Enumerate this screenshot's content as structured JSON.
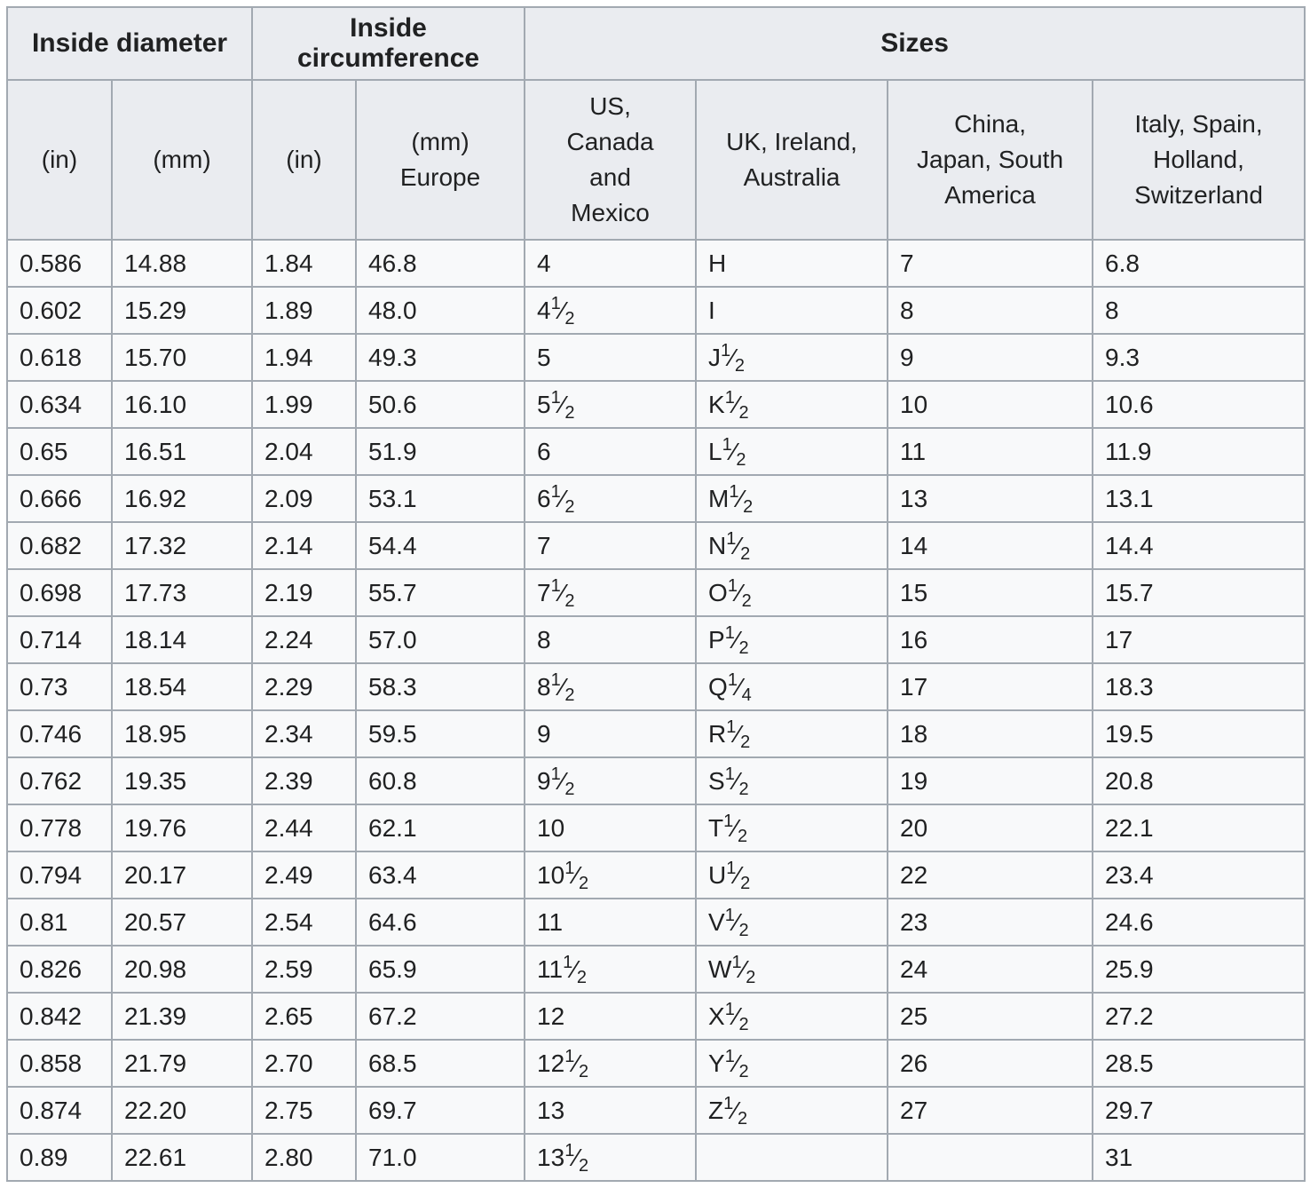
{
  "colors": {
    "border": "#a2a9b1",
    "header_bg": "#eaecf0",
    "cell_bg": "#f8f9fa",
    "text": "#202122",
    "page_bg": "#ffffff"
  },
  "table": {
    "name": "ring-size-conversion-table",
    "group_headers": [
      {
        "id": "inside-diameter",
        "label": "Inside diameter",
        "colspan": 2
      },
      {
        "id": "inside-circumference",
        "label": "Inside circumference",
        "colspan": 2
      },
      {
        "id": "sizes",
        "label": "Sizes",
        "colspan": 4
      }
    ],
    "column_headers": [
      {
        "id": "diameter-in",
        "lines": [
          "(in)"
        ]
      },
      {
        "id": "diameter-mm",
        "lines": [
          "(mm)"
        ]
      },
      {
        "id": "circumference-in",
        "lines": [
          "(in)"
        ]
      },
      {
        "id": "circumference-mm-europe",
        "lines": [
          "(mm)",
          "Europe"
        ]
      },
      {
        "id": "us-canada-mexico",
        "lines": [
          "US,",
          "Canada",
          "and",
          "Mexico"
        ]
      },
      {
        "id": "uk-ireland-australia",
        "lines": [
          "UK, Ireland,",
          "Australia"
        ]
      },
      {
        "id": "china-japan-south-america",
        "lines": [
          "China,",
          "Japan, South",
          "America"
        ]
      },
      {
        "id": "italy-spain-holland-switzerland",
        "lines": [
          "Italy, Spain,",
          "Holland,",
          "Switzerland"
        ]
      }
    ],
    "rows": [
      [
        "0.586",
        "14.88",
        "1.84",
        "46.8",
        "4",
        "H",
        "7",
        "6.8"
      ],
      [
        "0.602",
        "15.29",
        "1.89",
        "48.0",
        {
          "base": "4",
          "num": "1",
          "den": "2"
        },
        "I",
        "8",
        "8"
      ],
      [
        "0.618",
        "15.70",
        "1.94",
        "49.3",
        "5",
        {
          "base": "J",
          "num": "1",
          "den": "2"
        },
        "9",
        "9.3"
      ],
      [
        "0.634",
        "16.10",
        "1.99",
        "50.6",
        {
          "base": "5",
          "num": "1",
          "den": "2"
        },
        {
          "base": "K",
          "num": "1",
          "den": "2"
        },
        "10",
        "10.6"
      ],
      [
        "0.65",
        "16.51",
        "2.04",
        "51.9",
        "6",
        {
          "base": "L",
          "num": "1",
          "den": "2"
        },
        "11",
        "11.9"
      ],
      [
        "0.666",
        "16.92",
        "2.09",
        "53.1",
        {
          "base": "6",
          "num": "1",
          "den": "2"
        },
        {
          "base": "M",
          "num": "1",
          "den": "2"
        },
        "13",
        "13.1"
      ],
      [
        "0.682",
        "17.32",
        "2.14",
        "54.4",
        "7",
        {
          "base": "N",
          "num": "1",
          "den": "2"
        },
        "14",
        "14.4"
      ],
      [
        "0.698",
        "17.73",
        "2.19",
        "55.7",
        {
          "base": "7",
          "num": "1",
          "den": "2"
        },
        {
          "base": "O",
          "num": "1",
          "den": "2"
        },
        "15",
        "15.7"
      ],
      [
        "0.714",
        "18.14",
        "2.24",
        "57.0",
        "8",
        {
          "base": "P",
          "num": "1",
          "den": "2"
        },
        "16",
        "17"
      ],
      [
        "0.73",
        "18.54",
        "2.29",
        "58.3",
        {
          "base": "8",
          "num": "1",
          "den": "2"
        },
        {
          "base": "Q",
          "num": "1",
          "den": "4"
        },
        "17",
        "18.3"
      ],
      [
        "0.746",
        "18.95",
        "2.34",
        "59.5",
        "9",
        {
          "base": "R",
          "num": "1",
          "den": "2"
        },
        "18",
        "19.5"
      ],
      [
        "0.762",
        "19.35",
        "2.39",
        "60.8",
        {
          "base": "9",
          "num": "1",
          "den": "2"
        },
        {
          "base": "S",
          "num": "1",
          "den": "2"
        },
        "19",
        "20.8"
      ],
      [
        "0.778",
        "19.76",
        "2.44",
        "62.1",
        "10",
        {
          "base": "T",
          "num": "1",
          "den": "2"
        },
        "20",
        "22.1"
      ],
      [
        "0.794",
        "20.17",
        "2.49",
        "63.4",
        {
          "base": "10",
          "num": "1",
          "den": "2"
        },
        {
          "base": "U",
          "num": "1",
          "den": "2"
        },
        "22",
        "23.4"
      ],
      [
        "0.81",
        "20.57",
        "2.54",
        "64.6",
        "11",
        {
          "base": "V",
          "num": "1",
          "den": "2"
        },
        "23",
        "24.6"
      ],
      [
        "0.826",
        "20.98",
        "2.59",
        "65.9",
        {
          "base": "11",
          "num": "1",
          "den": "2"
        },
        {
          "base": "W",
          "num": "1",
          "den": "2"
        },
        "24",
        "25.9"
      ],
      [
        "0.842",
        "21.39",
        "2.65",
        "67.2",
        "12",
        {
          "base": "X",
          "num": "1",
          "den": "2"
        },
        "25",
        "27.2"
      ],
      [
        "0.858",
        "21.79",
        "2.70",
        "68.5",
        {
          "base": "12",
          "num": "1",
          "den": "2"
        },
        {
          "base": "Y",
          "num": "1",
          "den": "2"
        },
        "26",
        "28.5"
      ],
      [
        "0.874",
        "22.20",
        "2.75",
        "69.7",
        "13",
        {
          "base": "Z",
          "num": "1",
          "den": "2"
        },
        "27",
        "29.7"
      ],
      [
        "0.89",
        "22.61",
        "2.80",
        "71.0",
        {
          "base": "13",
          "num": "1",
          "den": "2"
        },
        "",
        "",
        "31"
      ]
    ]
  }
}
